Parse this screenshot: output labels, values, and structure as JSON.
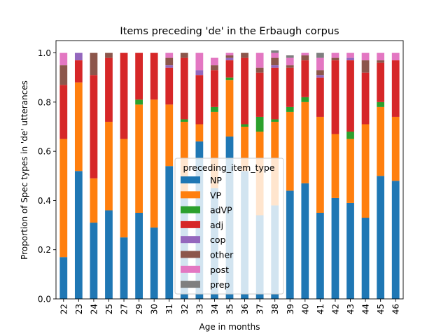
{
  "chart_data": {
    "type": "bar",
    "stacked": true,
    "title": "Items preceding 'de' in the Erbaugh corpus",
    "xlabel": "Age in months",
    "ylabel": "Proportion of Spec types in 'de' utterances",
    "ylim": [
      0,
      1.05
    ],
    "yticks": [
      "0.0",
      "0.2",
      "0.4",
      "0.6",
      "0.8",
      "1.0"
    ],
    "legend_title": "preceding_item_type",
    "legend_position": "center",
    "categories": [
      "22",
      "23",
      "24",
      "25",
      "27",
      "29",
      "30",
      "31",
      "32",
      "33",
      "34",
      "35",
      "36",
      "37",
      "38",
      "39",
      "40",
      "41",
      "42",
      "43",
      "44",
      "45",
      "46"
    ],
    "series": [
      {
        "name": "NP",
        "color": "#1f77b4",
        "values": [
          0.17,
          0.52,
          0.31,
          0.36,
          0.25,
          0.35,
          0.29,
          0.54,
          0.43,
          0.64,
          0.45,
          0.66,
          0.52,
          0.34,
          0.38,
          0.44,
          0.47,
          0.35,
          0.41,
          0.39,
          0.33,
          0.5,
          0.48
        ]
      },
      {
        "name": "VP",
        "color": "#ff7f0e",
        "values": [
          0.48,
          0.36,
          0.18,
          0.36,
          0.4,
          0.44,
          0.52,
          0.25,
          0.29,
          0.07,
          0.31,
          0.23,
          0.18,
          0.34,
          0.34,
          0.32,
          0.33,
          0.39,
          0.26,
          0.26,
          0.38,
          0.28,
          0.26
        ]
      },
      {
        "name": "adVP",
        "color": "#2ca02c",
        "values": [
          0,
          0,
          0,
          0,
          0,
          0.02,
          0,
          0,
          0.01,
          0,
          0.02,
          0.01,
          0.01,
          0.06,
          0.01,
          0.02,
          0.02,
          0,
          0,
          0.03,
          0,
          0.02,
          0
        ]
      },
      {
        "name": "adj",
        "color": "#d62728",
        "values": [
          0.22,
          0.09,
          0.42,
          0.26,
          0.35,
          0.19,
          0.19,
          0.15,
          0.25,
          0.2,
          0.15,
          0.07,
          0.27,
          0.18,
          0.21,
          0.16,
          0.15,
          0.16,
          0.3,
          0.29,
          0.21,
          0.16,
          0.23
        ]
      },
      {
        "name": "cop",
        "color": "#9467bd",
        "values": [
          0,
          0.03,
          0,
          0,
          0,
          0,
          0,
          0.01,
          0,
          0.02,
          0,
          0.01,
          0,
          0,
          0.01,
          0,
          0,
          0.01,
          0,
          0.01,
          0,
          0,
          0
        ]
      },
      {
        "name": "other",
        "color": "#8c564b",
        "values": [
          0.08,
          0,
          0.09,
          0.02,
          0,
          0,
          0,
          0.03,
          0.02,
          0,
          0.02,
          0.01,
          0.02,
          0.02,
          0.03,
          0.01,
          0.02,
          0.02,
          0.01,
          0,
          0.05,
          0.01,
          0
        ]
      },
      {
        "name": "post",
        "color": "#e377c2",
        "values": [
          0.05,
          0,
          0,
          0,
          0,
          0,
          0,
          0.02,
          0,
          0.07,
          0.03,
          0.01,
          0,
          0.06,
          0.02,
          0.03,
          0.01,
          0.05,
          0.02,
          0.02,
          0.03,
          0.03,
          0.03
        ]
      },
      {
        "name": "prep",
        "color": "#7f7f7f",
        "values": [
          0,
          0,
          0,
          0,
          0,
          0,
          0,
          0,
          0,
          0,
          0,
          0,
          0,
          0,
          0.01,
          0.01,
          0,
          0.02,
          0,
          0,
          0,
          0,
          0
        ]
      }
    ]
  }
}
